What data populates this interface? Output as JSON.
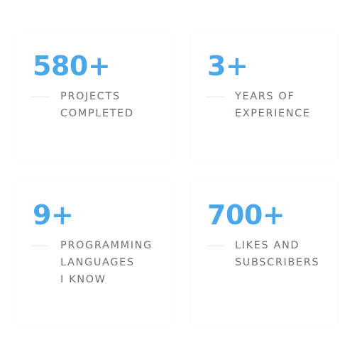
{
  "theme": {
    "accent": "#4aa8ea",
    "label_color": "#6b7378",
    "background": "#ffffff"
  },
  "stats": [
    {
      "value": "580+",
      "label_lines": [
        "PROJECTS",
        "COMPLETED"
      ]
    },
    {
      "value": "3+",
      "label_lines": [
        "YEARS OF",
        "EXPERIENCE"
      ]
    },
    {
      "value": "9+",
      "label_lines": [
        "PROGRAMMING",
        "LANGUAGES",
        "I KNOW"
      ]
    },
    {
      "value": "700+",
      "label_lines": [
        "LIKES AND",
        "SUBSCRIBERS"
      ]
    }
  ]
}
